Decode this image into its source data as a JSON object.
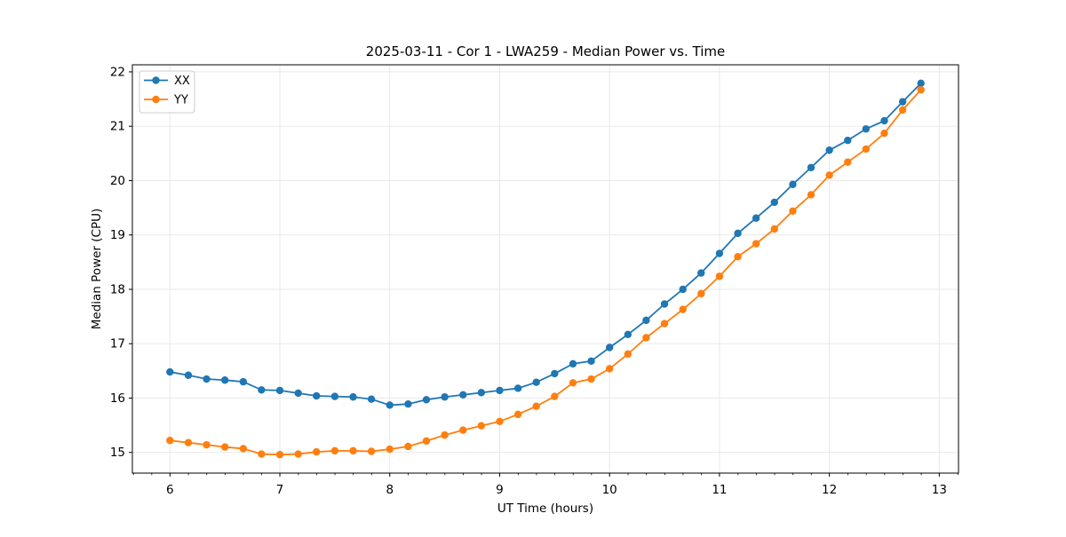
{
  "chart_data": {
    "type": "line",
    "title": "2025-03-11 - Cor 1 - LWA259 - Median Power vs. Time",
    "xlabel": "UT Time (hours)",
    "ylabel": "Median Power (CPU)",
    "xlim": [
      5.658,
      13.175
    ],
    "ylim": [
      14.62,
      22.13
    ],
    "xticks": [
      6,
      7,
      8,
      9,
      10,
      11,
      12,
      13
    ],
    "yticks": [
      15,
      16,
      17,
      18,
      19,
      20,
      21,
      22
    ],
    "x_minor_step": 0.1667,
    "grid": true,
    "legend_position": "upper-left",
    "background": "#ffffff",
    "grid_color": "#e6e6e6",
    "x": [
      6.0,
      6.167,
      6.333,
      6.5,
      6.667,
      6.833,
      7.0,
      7.167,
      7.333,
      7.5,
      7.667,
      7.833,
      8.0,
      8.167,
      8.333,
      8.5,
      8.667,
      8.833,
      9.0,
      9.167,
      9.333,
      9.5,
      9.667,
      9.833,
      10.0,
      10.167,
      10.333,
      10.5,
      10.667,
      10.833,
      11.0,
      11.167,
      11.333,
      11.5,
      11.667,
      11.833,
      12.0,
      12.167,
      12.333,
      12.5,
      12.667,
      12.833
    ],
    "series": [
      {
        "name": "XX",
        "color": "#1f77b4",
        "values": [
          16.48,
          16.42,
          16.35,
          16.33,
          16.3,
          16.15,
          16.14,
          16.09,
          16.04,
          16.03,
          16.02,
          15.98,
          15.87,
          15.89,
          15.97,
          16.02,
          16.06,
          16.1,
          16.14,
          16.18,
          16.29,
          16.45,
          16.63,
          16.68,
          16.93,
          17.17,
          17.43,
          17.73,
          18.0,
          18.3,
          18.66,
          19.03,
          19.31,
          19.6,
          19.93,
          20.24,
          20.56,
          20.74,
          20.95,
          21.1,
          21.45,
          21.79
        ]
      },
      {
        "name": "YY",
        "color": "#ff7f0e",
        "values": [
          15.22,
          15.18,
          15.14,
          15.1,
          15.07,
          14.97,
          14.96,
          14.97,
          15.01,
          15.03,
          15.03,
          15.02,
          15.06,
          15.11,
          15.21,
          15.32,
          15.41,
          15.49,
          15.57,
          15.7,
          15.85,
          16.03,
          16.28,
          16.35,
          16.54,
          16.81,
          17.11,
          17.37,
          17.63,
          17.92,
          18.24,
          18.6,
          18.84,
          19.11,
          19.44,
          19.74,
          20.1,
          20.34,
          20.58,
          20.87,
          21.3,
          21.67
        ]
      }
    ]
  }
}
